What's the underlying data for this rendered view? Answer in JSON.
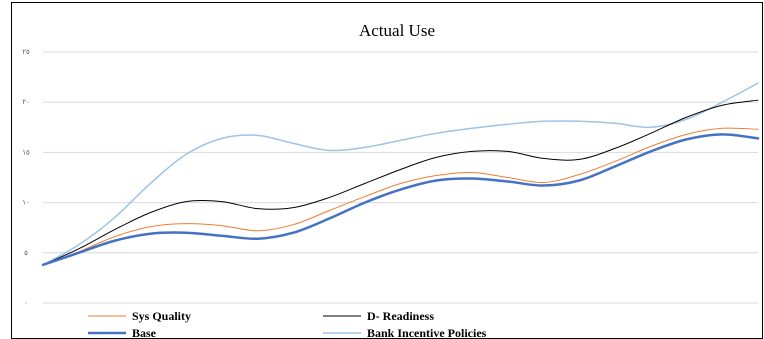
{
  "chart_data": {
    "type": "line",
    "title": "Actual Use",
    "y_tick_labels": [
      "٢٥",
      "٢٠",
      "١٥",
      "١٠",
      "٥",
      "٠"
    ],
    "y_tick_values": [
      25,
      20,
      15,
      10,
      5,
      0
    ],
    "ylim": [
      0,
      25
    ],
    "xlim": [
      0,
      100
    ],
    "grid": "horizontal",
    "legend_position": "bottom",
    "x": [
      0,
      5,
      10,
      15,
      20,
      25,
      30,
      35,
      40,
      45,
      50,
      55,
      60,
      65,
      70,
      75,
      80,
      85,
      90,
      95,
      100
    ],
    "series": [
      {
        "name": "Sys Quality",
        "color": "#ED7D31",
        "width": 1,
        "values": [
          3.8,
          5.1,
          6.6,
          7.6,
          7.9,
          7.7,
          7.2,
          7.8,
          9.2,
          10.6,
          11.9,
          12.7,
          13.0,
          12.5,
          12.0,
          12.8,
          14.1,
          15.6,
          16.8,
          17.4,
          17.3
        ]
      },
      {
        "name": "D- Readiness",
        "color": "#000000",
        "width": 1,
        "values": [
          3.8,
          5.4,
          7.3,
          9.0,
          10.1,
          10.1,
          9.4,
          9.5,
          10.5,
          11.9,
          13.3,
          14.5,
          15.1,
          15.1,
          14.4,
          14.3,
          15.4,
          16.9,
          18.5,
          19.7,
          20.2
        ]
      },
      {
        "name": "Base",
        "color": "#4472C4",
        "width": 2.5,
        "values": [
          3.8,
          5.0,
          6.2,
          6.9,
          7.0,
          6.7,
          6.4,
          7.0,
          8.4,
          10.0,
          11.3,
          12.2,
          12.4,
          12.1,
          11.7,
          12.2,
          13.6,
          15.1,
          16.3,
          16.8,
          16.4
        ]
      },
      {
        "name": "Bank Incentive Policies",
        "color": "#9DC3E6",
        "width": 1.5,
        "values": [
          3.8,
          5.8,
          8.5,
          11.9,
          14.8,
          16.4,
          16.7,
          15.9,
          15.2,
          15.5,
          16.2,
          16.9,
          17.4,
          17.8,
          18.1,
          18.1,
          17.9,
          17.5,
          18.3,
          20.0,
          21.9
        ]
      }
    ]
  }
}
